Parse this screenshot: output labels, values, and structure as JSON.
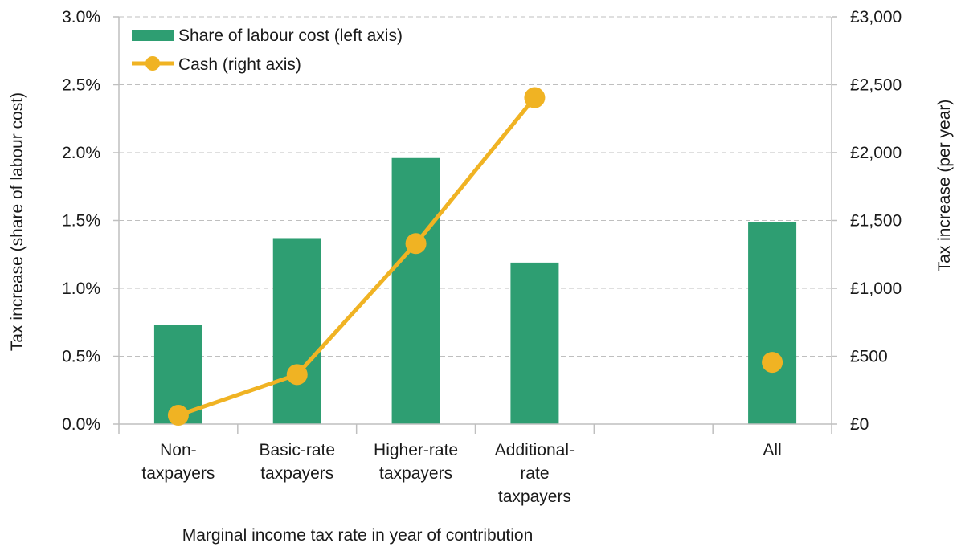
{
  "chart_data": {
    "type": "bar",
    "categories": [
      [
        "Non-",
        "taxpayers"
      ],
      [
        "Basic-rate",
        "taxpayers"
      ],
      [
        "Higher-rate",
        "taxpayers"
      ],
      [
        "Additional-",
        "rate",
        "taxpayers"
      ],
      [
        ""
      ],
      [
        "All"
      ]
    ],
    "series": [
      {
        "name": "Share of labour cost (left axis)",
        "type": "bar",
        "axis": "left",
        "color": "#2e9e72",
        "values": [
          0.73,
          1.37,
          1.96,
          1.19,
          null,
          1.49
        ]
      },
      {
        "name": "Cash (right axis)",
        "type": "line",
        "axis": "right",
        "color": "#f0b323",
        "values": [
          65,
          365,
          1330,
          2405,
          null,
          455
        ],
        "connected_through": 4
      }
    ],
    "xlabel": "Marginal income tax rate in year of contribution",
    "ylabel_left": "Tax increase (share of labour cost)",
    "ylabel_right": "Tax increase (per year)",
    "ylim_left": [
      0,
      3
    ],
    "ylim_right": [
      0,
      3000
    ],
    "yticks_left": [
      "0.0%",
      "0.5%",
      "1.0%",
      "1.5%",
      "2.0%",
      "2.5%",
      "3.0%"
    ],
    "yticks_right": [
      "£0",
      "£500",
      "£1,000",
      "£1,500",
      "£2,000",
      "£2,500",
      "£3,000"
    ],
    "grid": true,
    "legend_position": "top-left"
  }
}
